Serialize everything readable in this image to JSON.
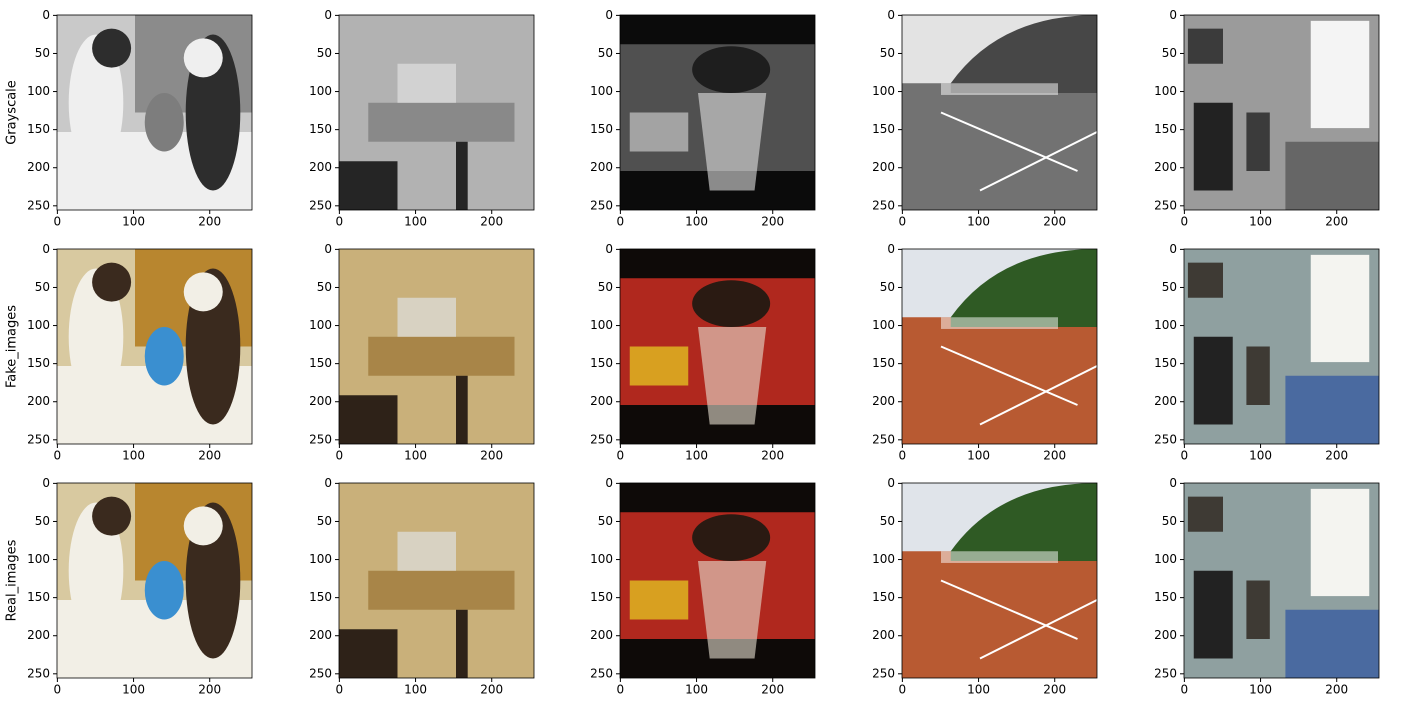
{
  "chart_data": {
    "type": "image-grid",
    "rows": [
      "Grayscale",
      "Fake_images",
      "Real_images"
    ],
    "xlim": [
      -0.5,
      255.5
    ],
    "ylim": [
      255.5,
      -0.5
    ],
    "xticks": [
      0,
      100,
      200
    ],
    "yticks": [
      0,
      50,
      100,
      150,
      200,
      250
    ]
  }
}
